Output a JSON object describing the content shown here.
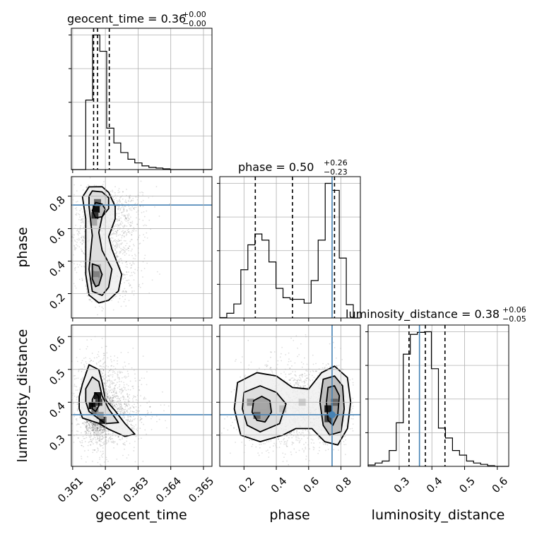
{
  "chart_data": {
    "type": "corner",
    "parameters": [
      "geocent_time",
      "phase",
      "luminosity_distance"
    ],
    "axis_labels": {
      "x": [
        "geocent_time",
        "phase",
        "luminosity_distance"
      ],
      "y": [
        "",
        "phase",
        "luminosity_distance"
      ]
    },
    "titles": [
      {
        "text": "geocent_time = 0.36",
        "sup": "+0.00",
        "sub": "−0.00"
      },
      {
        "text": "phase = 0.50",
        "sup": "+0.26",
        "sub": "−0.23"
      },
      {
        "text": "luminosity_distance = 0.38",
        "sup": "+0.06",
        "sub": "−0.05"
      }
    ],
    "ranges": {
      "geocent_time": [
        0.36096,
        0.36526
      ],
      "phase": [
        0.05,
        0.92
      ],
      "luminosity_distance": [
        0.205,
        0.635
      ]
    },
    "ticks": {
      "geocent_time": {
        "values": [
          0.361,
          0.362,
          0.363,
          0.364,
          0.365
        ],
        "labels": [
          "0.361",
          "0.362",
          "0.363",
          "0.364",
          "0.365"
        ]
      },
      "phase": {
        "values": [
          0.2,
          0.4,
          0.6,
          0.8
        ],
        "labels": [
          "0.2",
          "0.4",
          "0.6",
          "0.8"
        ]
      },
      "luminosity_distance": {
        "values": [
          0.3,
          0.4,
          0.5,
          0.6
        ],
        "labels": [
          "0.3",
          "0.4",
          "0.5",
          "0.6"
        ]
      }
    },
    "quantiles": {
      "geocent_time": [
        0.36164,
        0.36176,
        0.36212
      ],
      "phase": [
        0.27,
        0.5,
        0.76
      ],
      "luminosity_distance": [
        0.33,
        0.38,
        0.44
      ]
    },
    "truths": {
      "geocent_time": null,
      "phase": 0.745,
      "luminosity_distance": 0.362
    },
    "truth_color": "#4682b4",
    "grid": true,
    "histograms": {
      "geocent_time": {
        "bin_edges": [
          0.36096,
          0.36118,
          0.3614,
          0.36161,
          0.36183,
          0.36204,
          0.36226,
          0.36247,
          0.36269,
          0.3629,
          0.36312,
          0.36333,
          0.36355,
          0.36376,
          0.36398,
          0.36419,
          0.36441,
          0.36462,
          0.36484,
          0.36505,
          0.36526
        ],
        "counts": [
          0,
          0,
          94,
          182,
          160,
          56,
          36,
          23,
          14,
          9,
          5,
          3,
          2,
          1,
          0,
          0,
          0,
          0,
          0,
          0
        ]
      },
      "phase": {
        "bin_edges": [
          0.05,
          0.0935,
          0.137,
          0.1805,
          0.224,
          0.2675,
          0.311,
          0.3545,
          0.398,
          0.4415,
          0.485,
          0.5285,
          0.572,
          0.6155,
          0.659,
          0.7025,
          0.746,
          0.7895,
          0.833,
          0.8765,
          0.92
        ],
        "counts": [
          0.5,
          6,
          18,
          62,
          94,
          108,
          100,
          72,
          38,
          26,
          24,
          24,
          19,
          48,
          100,
          173,
          164,
          77,
          17,
          0
        ]
      },
      "luminosity_distance": {
        "bin_edges": [
          0.205,
          0.2265,
          0.248,
          0.2695,
          0.291,
          0.3125,
          0.334,
          0.3555,
          0.377,
          0.3985,
          0.42,
          0.4415,
          0.463,
          0.4845,
          0.506,
          0.5275,
          0.549,
          0.5705,
          0.592,
          0.6135,
          0.635
        ],
        "counts": [
          2,
          5,
          8,
          24,
          66,
          170,
          200,
          203,
          204,
          148,
          58,
          43,
          24,
          17,
          8,
          5,
          3,
          1,
          0,
          0
        ]
      }
    },
    "contours": {
      "phase_vs_geocent_time": [
        [
          [
            0.3615,
            0.857
          ],
          [
            0.3619,
            0.858
          ],
          [
            0.3621,
            0.823
          ],
          [
            0.3623,
            0.737
          ],
          [
            0.3623,
            0.66
          ],
          [
            0.3621,
            0.55
          ],
          [
            0.3622,
            0.473
          ],
          [
            0.3625,
            0.318
          ],
          [
            0.3624,
            0.216
          ],
          [
            0.3621,
            0.159
          ],
          [
            0.3618,
            0.143
          ],
          [
            0.3615,
            0.191
          ],
          [
            0.3614,
            0.318
          ],
          [
            0.3614,
            0.518
          ],
          [
            0.3614,
            0.66
          ],
          [
            0.3613,
            0.795
          ],
          [
            0.3615,
            0.857
          ]
        ],
        [
          [
            0.3616,
            0.832
          ],
          [
            0.3619,
            0.826
          ],
          [
            0.3621,
            0.79
          ],
          [
            0.3621,
            0.723
          ],
          [
            0.3619,
            0.673
          ],
          [
            0.3618,
            0.576
          ],
          [
            0.3619,
            0.466
          ],
          [
            0.3622,
            0.35
          ],
          [
            0.3621,
            0.239
          ],
          [
            0.3619,
            0.189
          ],
          [
            0.3616,
            0.214
          ],
          [
            0.3615,
            0.35
          ],
          [
            0.3616,
            0.557
          ],
          [
            0.3615,
            0.737
          ],
          [
            0.3615,
            0.8
          ],
          [
            0.3616,
            0.832
          ]
        ],
        [
          [
            0.3617,
            0.761
          ],
          [
            0.3619,
            0.751
          ],
          [
            0.362,
            0.719
          ],
          [
            0.3619,
            0.673
          ],
          [
            0.3617,
            0.666
          ],
          [
            0.3616,
            0.711
          ],
          [
            0.3617,
            0.761
          ]
        ],
        [
          [
            0.3616,
            0.383
          ],
          [
            0.3618,
            0.369
          ],
          [
            0.3619,
            0.318
          ],
          [
            0.3618,
            0.252
          ],
          [
            0.3617,
            0.243
          ],
          [
            0.3616,
            0.291
          ],
          [
            0.3616,
            0.383
          ]
        ]
      ],
      "luminosity_distance_vs_geocent_time": [
        [
          [
            0.3615,
            0.514
          ],
          [
            0.3618,
            0.499
          ],
          [
            0.3619,
            0.461
          ],
          [
            0.362,
            0.408
          ],
          [
            0.3623,
            0.374
          ],
          [
            0.3626,
            0.335
          ],
          [
            0.3629,
            0.303
          ],
          [
            0.3626,
            0.296
          ],
          [
            0.3621,
            0.318
          ],
          [
            0.3618,
            0.336
          ],
          [
            0.3613,
            0.352
          ],
          [
            0.3612,
            0.38
          ],
          [
            0.3612,
            0.417
          ],
          [
            0.3613,
            0.456
          ],
          [
            0.3615,
            0.514
          ]
        ],
        [
          [
            0.3616,
            0.477
          ],
          [
            0.3618,
            0.463
          ],
          [
            0.3619,
            0.419
          ],
          [
            0.3621,
            0.38
          ],
          [
            0.3624,
            0.338
          ],
          [
            0.362,
            0.335
          ],
          [
            0.3617,
            0.357
          ],
          [
            0.3615,
            0.372
          ],
          [
            0.3614,
            0.402
          ],
          [
            0.3614,
            0.441
          ],
          [
            0.3616,
            0.477
          ]
        ],
        [
          [
            0.3617,
            0.429
          ],
          [
            0.3618,
            0.417
          ],
          [
            0.3618,
            0.389
          ],
          [
            0.3617,
            0.372
          ],
          [
            0.3616,
            0.38
          ],
          [
            0.3616,
            0.408
          ],
          [
            0.3617,
            0.429
          ]
        ]
      ],
      "luminosity_distance_vs_phase": [
        [
          [
            0.16,
            0.46
          ],
          [
            0.28,
            0.49
          ],
          [
            0.4,
            0.48
          ],
          [
            0.5,
            0.445
          ],
          [
            0.6,
            0.44
          ],
          [
            0.68,
            0.49
          ],
          [
            0.76,
            0.51
          ],
          [
            0.84,
            0.475
          ],
          [
            0.86,
            0.4
          ],
          [
            0.84,
            0.32
          ],
          [
            0.78,
            0.27
          ],
          [
            0.7,
            0.28
          ],
          [
            0.62,
            0.32
          ],
          [
            0.52,
            0.32
          ],
          [
            0.44,
            0.3
          ],
          [
            0.3,
            0.28
          ],
          [
            0.18,
            0.3
          ],
          [
            0.14,
            0.38
          ],
          [
            0.16,
            0.46
          ]
        ],
        [
          [
            0.2,
            0.43
          ],
          [
            0.3,
            0.45
          ],
          [
            0.4,
            0.43
          ],
          [
            0.46,
            0.395
          ],
          [
            0.42,
            0.335
          ],
          [
            0.3,
            0.31
          ],
          [
            0.22,
            0.33
          ],
          [
            0.19,
            0.38
          ],
          [
            0.2,
            0.43
          ]
        ],
        [
          [
            0.69,
            0.47
          ],
          [
            0.76,
            0.48
          ],
          [
            0.81,
            0.45
          ],
          [
            0.82,
            0.38
          ],
          [
            0.8,
            0.31
          ],
          [
            0.73,
            0.3
          ],
          [
            0.69,
            0.33
          ],
          [
            0.67,
            0.4
          ],
          [
            0.69,
            0.47
          ]
        ],
        [
          [
            0.26,
            0.405
          ],
          [
            0.31,
            0.418
          ],
          [
            0.36,
            0.405
          ],
          [
            0.37,
            0.37
          ],
          [
            0.33,
            0.34
          ],
          [
            0.28,
            0.345
          ],
          [
            0.25,
            0.37
          ],
          [
            0.26,
            0.405
          ]
        ],
        [
          [
            0.72,
            0.445
          ],
          [
            0.76,
            0.45
          ],
          [
            0.79,
            0.42
          ],
          [
            0.78,
            0.36
          ],
          [
            0.75,
            0.33
          ],
          [
            0.72,
            0.345
          ],
          [
            0.71,
            0.4
          ],
          [
            0.72,
            0.445
          ]
        ]
      ]
    },
    "density_blocks": {
      "phase_vs_geocent_time": [
        [
          0.36172,
          0.72,
          0.95
        ],
        [
          0.36168,
          0.68,
          0.8
        ],
        [
          0.36176,
          0.76,
          0.6
        ],
        [
          0.36164,
          0.64,
          0.35
        ],
        [
          0.36172,
          0.32,
          0.5
        ],
        [
          0.36168,
          0.28,
          0.35
        ],
        [
          0.36176,
          0.36,
          0.3
        ]
      ],
      "luminosity_distance_vs_geocent_time": [
        [
          0.36176,
          0.42,
          0.9
        ],
        [
          0.3616,
          0.39,
          0.95
        ],
        [
          0.3618,
          0.4,
          0.75
        ],
        [
          0.36192,
          0.345,
          0.85
        ],
        [
          0.36168,
          0.375,
          0.55
        ],
        [
          0.36184,
          0.36,
          0.4
        ]
      ],
      "luminosity_distance_vs_phase": [
        [
          0.72,
          0.38,
          0.9
        ],
        [
          0.72,
          0.35,
          0.75
        ],
        [
          0.76,
          0.4,
          0.6
        ],
        [
          0.28,
          0.36,
          0.6
        ],
        [
          0.24,
          0.4,
          0.4
        ],
        [
          0.32,
          0.39,
          0.35
        ],
        [
          0.44,
          0.38,
          0.25
        ],
        [
          0.56,
          0.4,
          0.2
        ]
      ]
    }
  }
}
